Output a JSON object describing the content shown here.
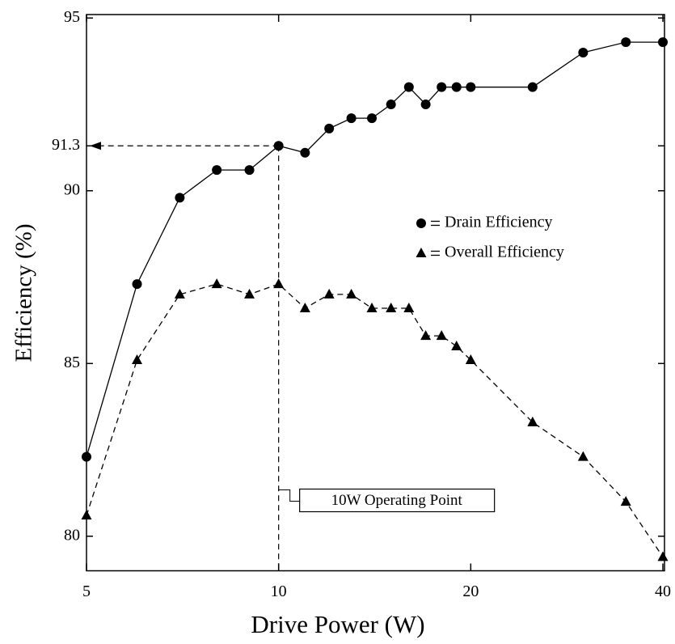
{
  "chart_data": {
    "type": "line",
    "x_label": "Drive Power (W)",
    "y_label": "Efficiency (%)",
    "x_scale": "log",
    "xlim": [
      5,
      40
    ],
    "xticks": [
      5,
      10,
      20,
      40
    ],
    "ylim": [
      79,
      95.1
    ],
    "yticks": [
      80,
      85,
      90,
      91.3,
      95
    ],
    "legend_position": "center right",
    "annotation": "10W Operating Point",
    "series": [
      {
        "name": "Drain Efficiency",
        "color": "#000000",
        "marker": "circle",
        "line": "solid",
        "x": [
          5,
          6,
          7,
          8,
          9,
          10,
          11,
          12,
          13,
          14,
          15,
          16,
          17,
          18,
          19,
          20,
          25,
          30,
          35,
          40
        ],
        "values": [
          82.3,
          87.3,
          89.8,
          90.6,
          90.6,
          91.3,
          91.1,
          91.8,
          92.1,
          92.1,
          92.5,
          93.0,
          92.5,
          93.0,
          93.0,
          93.0,
          93.0,
          94.0,
          94.3,
          94.3
        ]
      },
      {
        "name": "Overall Efficiency",
        "color": "#000000",
        "marker": "triangle",
        "line": "dashed",
        "x": [
          5,
          6,
          7,
          8,
          9,
          10,
          11,
          12,
          13,
          14,
          15,
          16,
          17,
          18,
          19,
          20,
          25,
          30,
          35,
          40
        ],
        "values": [
          80.6,
          85.1,
          87.0,
          87.3,
          87.0,
          87.3,
          86.6,
          87.0,
          87.0,
          86.6,
          86.6,
          86.6,
          85.8,
          85.8,
          85.5,
          85.1,
          83.3,
          82.3,
          81.0,
          79.4
        ]
      }
    ]
  }
}
